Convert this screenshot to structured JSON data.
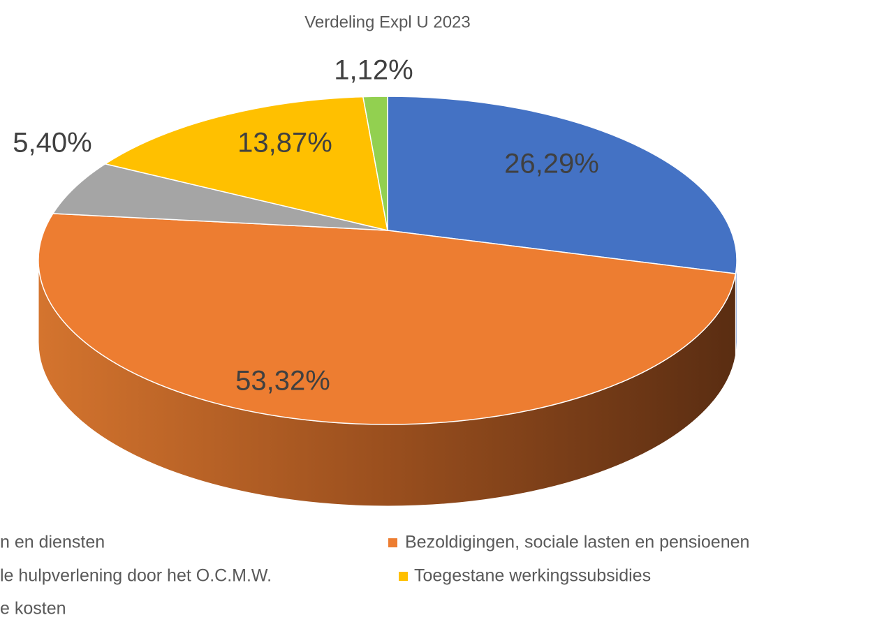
{
  "chart_data": {
    "type": "pie3d",
    "title": "Verdeling Expl U 2023",
    "categories": [
      "n en diensten",
      "Bezoldigingen, sociale lasten en pensioenen",
      "le hulpverlening door het O.C.M.W.",
      "Toegestane werkingssubsidies",
      "e kosten"
    ],
    "values": [
      26.29,
      53.32,
      5.4,
      13.87,
      1.12
    ],
    "value_labels": [
      "26,29%",
      "53,32%",
      "5,40%",
      "13,87%",
      "1,12%"
    ],
    "colors": [
      "#4472c4",
      "#ed7d31",
      "#a5a5a5",
      "#ffc000",
      "#92d050"
    ],
    "legend": "bottom"
  }
}
